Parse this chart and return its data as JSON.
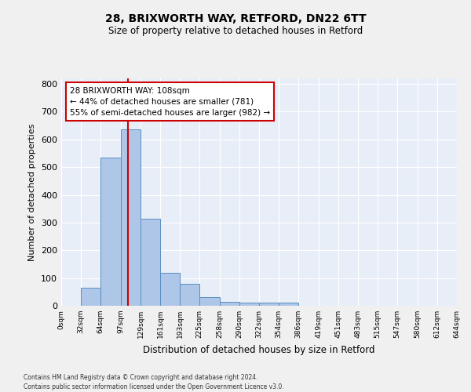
{
  "title1": "28, BRIXWORTH WAY, RETFORD, DN22 6TT",
  "title2": "Size of property relative to detached houses in Retford",
  "xlabel": "Distribution of detached houses by size in Retford",
  "ylabel": "Number of detached properties",
  "bin_edges": [
    0,
    32,
    64,
    97,
    129,
    161,
    193,
    225,
    258,
    290,
    322,
    354,
    386,
    419,
    451,
    483,
    515,
    547,
    580,
    612,
    644
  ],
  "bar_heights": [
    0,
    65,
    535,
    635,
    315,
    120,
    78,
    30,
    15,
    10,
    10,
    10,
    0,
    0,
    0,
    0,
    0,
    0,
    0,
    0
  ],
  "bar_color": "#aec6e8",
  "bar_edge_color": "#5a8fc0",
  "property_size": 108,
  "red_line_color": "#cc0000",
  "annotation_text": "28 BRIXWORTH WAY: 108sqm\n← 44% of detached houses are smaller (781)\n55% of semi-detached houses are larger (982) →",
  "annotation_box_color": "#ffffff",
  "annotation_box_edge": "#cc0000",
  "ylim": [
    0,
    820
  ],
  "yticks": [
    0,
    100,
    200,
    300,
    400,
    500,
    600,
    700,
    800
  ],
  "background_color": "#e8eef8",
  "fig_background_color": "#f0f0f0",
  "grid_color": "#ffffff",
  "footer_text": "Contains HM Land Registry data © Crown copyright and database right 2024.\nContains public sector information licensed under the Open Government Licence v3.0.",
  "tick_labels": [
    "0sqm",
    "32sqm",
    "64sqm",
    "97sqm",
    "129sqm",
    "161sqm",
    "193sqm",
    "225sqm",
    "258sqm",
    "290sqm",
    "322sqm",
    "354sqm",
    "386sqm",
    "419sqm",
    "451sqm",
    "483sqm",
    "515sqm",
    "547sqm",
    "580sqm",
    "612sqm",
    "644sqm"
  ]
}
